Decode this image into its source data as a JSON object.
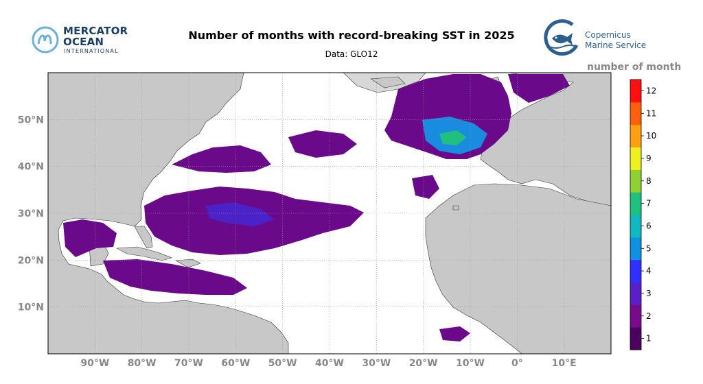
{
  "header": {
    "title": "Number of months with record-breaking SST in 2025",
    "subtitle": "Data: GLO12"
  },
  "logos": {
    "left": {
      "line1": "MERCATOR",
      "line2": "OCEAN",
      "line3": "INTERNATIONAL"
    },
    "right": {
      "line1": "Copernicus",
      "line2": "Marine Service"
    }
  },
  "map": {
    "extent": {
      "lon_min": -100,
      "lon_max": 20,
      "lat_min": 0,
      "lat_max": 60
    },
    "lat_labels": [
      "50°N",
      "40°N",
      "30°N",
      "20°N",
      "10°N"
    ],
    "lat_values": [
      50,
      40,
      30,
      20,
      10
    ],
    "lon_labels": [
      "90°W",
      "80°W",
      "70°W",
      "60°W",
      "50°W",
      "40°W",
      "30°W",
      "20°W",
      "10°W",
      "0°",
      "10°E"
    ],
    "lon_values": [
      -90,
      -80,
      -70,
      -60,
      -50,
      -40,
      -30,
      -20,
      -10,
      0,
      10
    ],
    "colors": {
      "land": "#c8c8c8",
      "ocean": "#ffffff",
      "grid": "#999999"
    }
  },
  "colorbar": {
    "title": "number of month",
    "ticks": [
      "1",
      "2",
      "3",
      "4",
      "5",
      "6",
      "7",
      "8",
      "9",
      "10",
      "11",
      "12"
    ],
    "colors": [
      "#4b0060",
      "#7a0a8c",
      "#5a1fc8",
      "#3030ff",
      "#1090e0",
      "#10b8c0",
      "#20c080",
      "#90d030",
      "#f0f020",
      "#ffa010",
      "#ff6010",
      "#ff1010"
    ]
  }
}
